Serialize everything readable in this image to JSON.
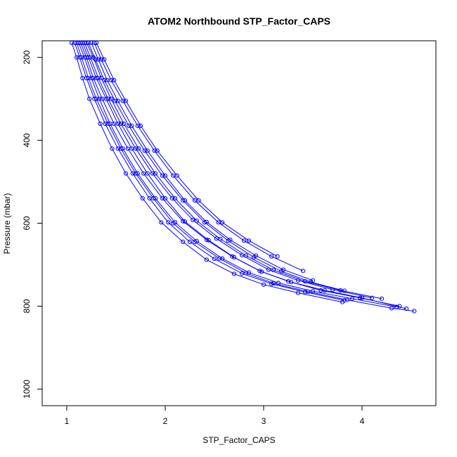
{
  "chart_data": {
    "type": "line",
    "title": "ATOM2 Northbound STP_Factor_CAPS",
    "xlabel": "STP_Factor_CAPS",
    "ylabel": "Pressure (mbar)",
    "xlim": [
      0.75,
      4.75
    ],
    "ylim": [
      1040,
      160
    ],
    "y_reversed": true,
    "x_ticks": [
      1,
      2,
      3,
      4
    ],
    "y_ticks": [
      200,
      400,
      600,
      800,
      1000
    ],
    "x_tick_labels": [
      "1",
      "2",
      "3",
      "4"
    ],
    "y_tick_labels": [
      "200",
      "400",
      "600",
      "800",
      "1000"
    ],
    "grid": false,
    "legend": "none",
    "line_color": "#0000ff",
    "marker": "open-circle",
    "series": [
      {
        "x": [
          1.1,
          1.15,
          1.22,
          1.3,
          1.42,
          1.55,
          1.7,
          1.88,
          2.08,
          2.3,
          2.55,
          2.82,
          3.1,
          3.45,
          3.85,
          4.3,
          4.53
        ],
        "y": [
          165,
          200,
          250,
          300,
          360,
          420,
          480,
          540,
          600,
          645,
          685,
          720,
          745,
          765,
          785,
          805,
          812
        ]
      },
      {
        "x": [
          1.14,
          1.2,
          1.27,
          1.36,
          1.48,
          1.62,
          1.78,
          1.97,
          2.18,
          2.42,
          2.68,
          2.96,
          3.25,
          3.58,
          3.98,
          4.38
        ],
        "y": [
          165,
          200,
          250,
          300,
          360,
          420,
          480,
          540,
          595,
          640,
          680,
          715,
          740,
          762,
          780,
          800
        ]
      },
      {
        "x": [
          1.18,
          1.24,
          1.32,
          1.42,
          1.55,
          1.7,
          1.87,
          2.07,
          2.28,
          2.52,
          2.78,
          3.05,
          3.35,
          3.7,
          4.1
        ],
        "y": [
          165,
          200,
          250,
          300,
          360,
          420,
          480,
          540,
          592,
          637,
          677,
          712,
          738,
          760,
          780
        ]
      },
      {
        "x": [
          1.05,
          1.1,
          1.16,
          1.23,
          1.34,
          1.46,
          1.6,
          1.77,
          1.96,
          2.18,
          2.42,
          2.7,
          3.0,
          3.35,
          3.8
        ],
        "y": [
          165,
          200,
          250,
          300,
          360,
          420,
          480,
          540,
          598,
          645,
          688,
          722,
          748,
          768,
          790
        ]
      },
      {
        "x": [
          1.22,
          1.29,
          1.38,
          1.49,
          1.63,
          1.79,
          1.97,
          2.18,
          2.4,
          2.64,
          2.9,
          3.18,
          3.48,
          3.82
        ],
        "y": [
          165,
          205,
          255,
          305,
          365,
          425,
          485,
          545,
          598,
          642,
          682,
          716,
          742,
          763
        ]
      },
      {
        "x": [
          1.25,
          1.32,
          1.41,
          1.52,
          1.66,
          1.82,
          2.0,
          2.2,
          2.42,
          2.66,
          2.92,
          3.2,
          3.5
        ],
        "y": [
          165,
          205,
          255,
          305,
          365,
          425,
          485,
          545,
          597,
          640,
          678,
          712,
          738
        ]
      },
      {
        "x": [
          1.28,
          1.35,
          1.45,
          1.57,
          1.72,
          1.89,
          2.08,
          2.3,
          2.54,
          2.8,
          3.08,
          3.4
        ],
        "y": [
          165,
          205,
          255,
          305,
          365,
          425,
          485,
          545,
          598,
          642,
          680,
          715
        ]
      },
      {
        "x": [
          1.12,
          1.18,
          1.25,
          1.33,
          1.44,
          1.57,
          1.72,
          1.9,
          2.1,
          2.32,
          2.58,
          2.85,
          3.15,
          3.5,
          3.9,
          4.35
        ],
        "y": [
          165,
          200,
          250,
          300,
          360,
          420,
          480,
          540,
          598,
          643,
          685,
          719,
          744,
          764,
          782,
          802
        ]
      },
      {
        "x": [
          1.2,
          1.27,
          1.35,
          1.45,
          1.58,
          1.73,
          1.9,
          2.1,
          2.32,
          2.56,
          2.82,
          3.1,
          3.42,
          3.78,
          4.2
        ],
        "y": [
          165,
          200,
          250,
          300,
          360,
          420,
          480,
          540,
          594,
          638,
          678,
          713,
          740,
          762,
          782
        ]
      },
      {
        "x": [
          1.08,
          1.13,
          1.2,
          1.28,
          1.39,
          1.52,
          1.67,
          1.84,
          2.03,
          2.25,
          2.5,
          2.78,
          3.08,
          3.42,
          3.82
        ],
        "y": [
          165,
          200,
          250,
          300,
          360,
          420,
          480,
          540,
          598,
          645,
          686,
          721,
          746,
          766,
          786
        ]
      },
      {
        "x": [
          1.3,
          1.38,
          1.48,
          1.6,
          1.75,
          1.92,
          2.12,
          2.34,
          2.58,
          2.85,
          3.14
        ],
        "y": [
          165,
          205,
          255,
          305,
          365,
          425,
          485,
          545,
          598,
          642,
          680
        ]
      },
      {
        "x": [
          1.16,
          1.22,
          1.3,
          1.4,
          1.52,
          1.66,
          1.82,
          2.0,
          2.2,
          2.44,
          2.7,
          2.98,
          3.28,
          3.62,
          4.0,
          4.45
        ],
        "y": [
          165,
          200,
          250,
          300,
          360,
          420,
          480,
          540,
          596,
          641,
          682,
          717,
          742,
          762,
          780,
          806
        ]
      }
    ]
  }
}
